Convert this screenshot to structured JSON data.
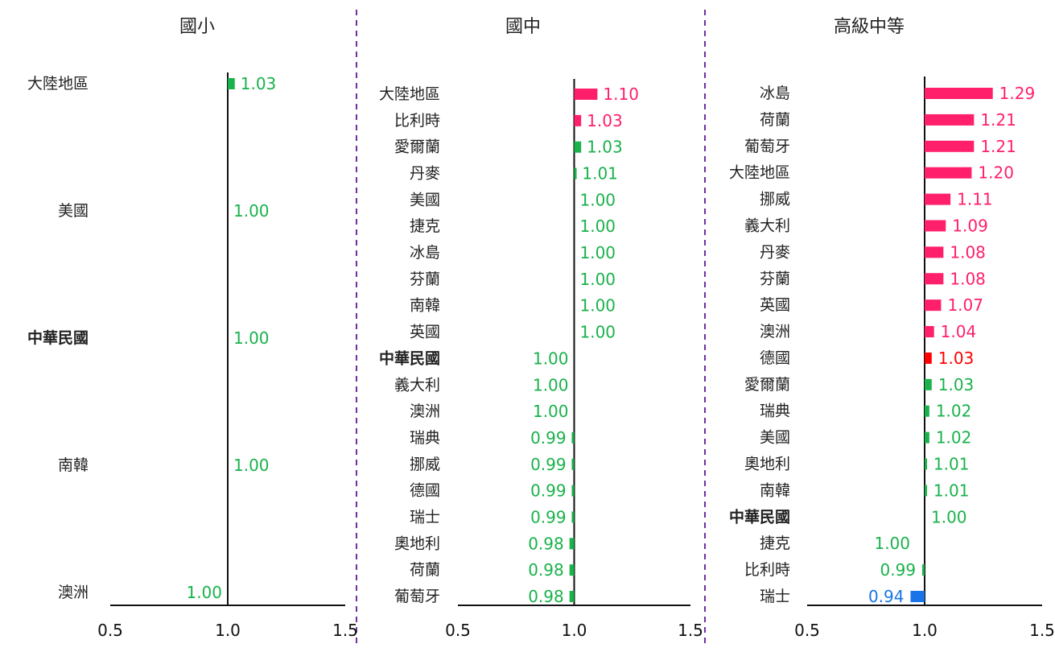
{
  "colors": {
    "pink": "#ff1f6b",
    "red": "#ff0000",
    "green": "#19b24b",
    "blue": "#1874e8",
    "axis": "#111111",
    "divider": "#7030a0"
  },
  "chart_data": [
    {
      "type": "bar",
      "orientation": "horizontal",
      "title": "國小",
      "xlim": [
        0.5,
        1.5
      ],
      "xticks": [
        "0.5",
        "1.0",
        "1.5"
      ],
      "categories": [
        "大陸地區",
        "美國",
        "中華民國",
        "南韓",
        "澳洲"
      ],
      "values": [
        1.03,
        1.0,
        1.0,
        1.0,
        1.0
      ],
      "labels": [
        "1.03",
        "1.00",
        "1.00",
        "1.00",
        "1.00"
      ],
      "colors": [
        "green",
        "green",
        "green",
        "green",
        "green"
      ],
      "highlight": "中華民國"
    },
    {
      "type": "bar",
      "orientation": "horizontal",
      "title": "國中",
      "xlim": [
        0.5,
        1.5
      ],
      "xticks": [
        "0.5",
        "1.0",
        "1.5"
      ],
      "categories": [
        "大陸地區",
        "比利時",
        "愛爾蘭",
        "丹麥",
        "美國",
        "捷克",
        "冰島",
        "芬蘭",
        "南韓",
        "英國",
        "中華民國",
        "義大利",
        "澳洲",
        "瑞典",
        "挪威",
        "德國",
        "瑞士",
        "奧地利",
        "荷蘭",
        "葡萄牙"
      ],
      "values": [
        1.1,
        1.03,
        1.03,
        1.01,
        1.0,
        1.0,
        1.0,
        1.0,
        1.0,
        1.0,
        1.0,
        1.0,
        1.0,
        0.99,
        0.99,
        0.99,
        0.99,
        0.98,
        0.98,
        0.98
      ],
      "labels": [
        "1.10",
        "1.03",
        "1.03",
        "1.01",
        "1.00",
        "1.00",
        "1.00",
        "1.00",
        "1.00",
        "1.00",
        "1.00",
        "1.00",
        "1.00",
        "0.99",
        "0.99",
        "0.99",
        "0.99",
        "0.98",
        "0.98",
        "0.98"
      ],
      "colors": [
        "pink",
        "pink",
        "green",
        "green",
        "green",
        "green",
        "green",
        "green",
        "green",
        "green",
        "green",
        "green",
        "green",
        "green",
        "green",
        "green",
        "green",
        "green",
        "green",
        "green"
      ],
      "highlight": "中華民國"
    },
    {
      "type": "bar",
      "orientation": "horizontal",
      "title": "高級中等",
      "xlim": [
        0.5,
        1.5
      ],
      "xticks": [
        "0.5",
        "1.0",
        "1.5"
      ],
      "categories": [
        "冰島",
        "荷蘭",
        "葡萄牙",
        "大陸地區",
        "挪威",
        "義大利",
        "丹麥",
        "芬蘭",
        "英國",
        "澳洲",
        "德國",
        "愛爾蘭",
        "瑞典",
        "美國",
        "奧地利",
        "南韓",
        "中華民國",
        "捷克",
        "比利時",
        "瑞士"
      ],
      "values": [
        1.29,
        1.21,
        1.21,
        1.2,
        1.11,
        1.09,
        1.08,
        1.08,
        1.07,
        1.04,
        1.03,
        1.03,
        1.02,
        1.02,
        1.01,
        1.01,
        1.0,
        1.0,
        0.99,
        0.94
      ],
      "labels": [
        "1.29",
        "1.21",
        "1.21",
        "1.20",
        "1.11",
        "1.09",
        "1.08",
        "1.08",
        "1.07",
        "1.04",
        "1.03",
        "1.03",
        "1.02",
        "1.02",
        "1.01",
        "1.01",
        "1.00",
        "1.00",
        "0.99",
        "0.94"
      ],
      "colors": [
        "pink",
        "pink",
        "pink",
        "pink",
        "pink",
        "pink",
        "pink",
        "pink",
        "pink",
        "pink",
        "red",
        "green",
        "green",
        "green",
        "green",
        "green",
        "green",
        "green",
        "green",
        "blue"
      ],
      "highlight": "中華民國"
    }
  ]
}
